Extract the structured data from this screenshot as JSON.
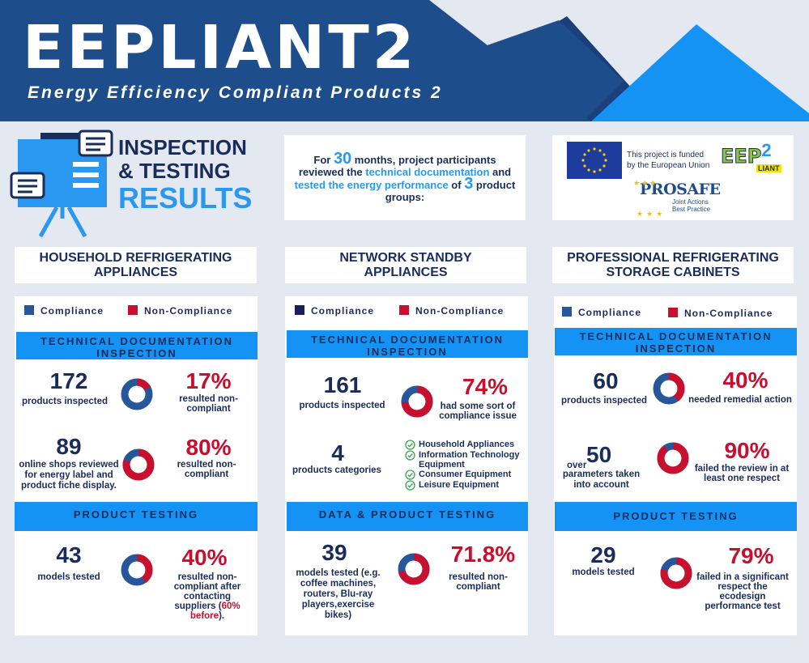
{
  "header": {
    "title": "EEPLIANT2",
    "subtitle": "Energy Efficiency Compliant Products 2"
  },
  "results_heading": {
    "line1": "INSPECTION",
    "line2": "& TESTING",
    "line3": "RESULTS"
  },
  "intro": {
    "p1": "For ",
    "months": "30",
    "p2": " months, project participants reviewed the ",
    "link1": "technical documentation",
    "p3": " and ",
    "link2": "tested the energy performance",
    "p4": " of ",
    "groups": "3",
    "p5": " product groups:"
  },
  "funding": {
    "eu_text_1": "This project is funded",
    "eu_text_2": "by the European Union",
    "logo_text_1": "EEP",
    "logo_text_2": "2",
    "logo_text_3": "LIANT",
    "prosafe": "PROSAFE",
    "prosafe_tag_1": "Joint Actions",
    "prosafe_tag_2": "Best Practice"
  },
  "colors": {
    "compliance": "#26579a",
    "non_compliance": "#c8102e",
    "band": "#1493f4",
    "navy": "#1a2d5a"
  },
  "columns": [
    {
      "title": "HOUSEHOLD REFRIGERATING APPLIANCES",
      "legend": {
        "compliance": "Compliance",
        "non_compliance": "Non-Compliance"
      },
      "section1": "TECHNICAL DOCUMENTATION INSPECTION",
      "stat1": {
        "value": "172",
        "label": "products inspected",
        "pct": "17%",
        "desc": "resulted non-compliant",
        "share": 0.17
      },
      "stat2": {
        "value": "89",
        "label": "online shops reviewed for energy label and product fiche display.",
        "pct": "80%",
        "desc": "resulted non-compliant",
        "share": 0.8
      },
      "section2": "PRODUCT TESTING",
      "stat3": {
        "value": "43",
        "label": "models tested",
        "pct": "40%",
        "desc": "resulted non-compliant after contacting suppliers",
        "note_open": "(",
        "note": "60% before",
        "note_close": ").",
        "share": 0.4
      }
    },
    {
      "title": "NETWORK STANDBY APPLIANCES",
      "legend": {
        "compliance": "Compliance",
        "non_compliance": "Non-Compliance"
      },
      "section1": "TECHNICAL DOCUMENTATION INSPECTION",
      "stat1": {
        "value": "161",
        "label": "products inspected",
        "pct": "74%",
        "desc": "had some sort of compliance issue",
        "share": 0.74
      },
      "stat2": {
        "value": "4",
        "label": "products categories",
        "items": [
          "Household Appliances",
          "Information Technology Equipment",
          "Consumer Equipment",
          "Leisure Equipment"
        ]
      },
      "section2": "DATA & PRODUCT TESTING",
      "stat3": {
        "value": "39",
        "label": "models tested (e.g.  coffee machines, routers, Blu-ray players,exercise bikes)",
        "pct": "71.8%",
        "desc": "resulted non-compliant",
        "share": 0.718
      }
    },
    {
      "title": "PROFESSIONAL REFRIGERATING STORAGE CABINETS",
      "legend": {
        "compliance": "Compliance",
        "non_compliance": "Non-Compliance"
      },
      "section1": "TECHNICAL DOCUMENTATION INSPECTION",
      "stat1": {
        "value": "60",
        "label": "products inspected",
        "pct": "40%",
        "desc": "needed remedial action",
        "share": 0.4
      },
      "stat2": {
        "prefix": "over",
        "value": "50",
        "label": "parameters taken into account",
        "pct": "90%",
        "desc": "failed the review in at least one respect",
        "share": 0.9
      },
      "section2": "PRODUCT TESTING",
      "stat3": {
        "value": "29",
        "label": "models tested",
        "pct": "79%",
        "desc": "failed in a significant respect the ecodesign performance test",
        "share": 0.79
      }
    }
  ]
}
